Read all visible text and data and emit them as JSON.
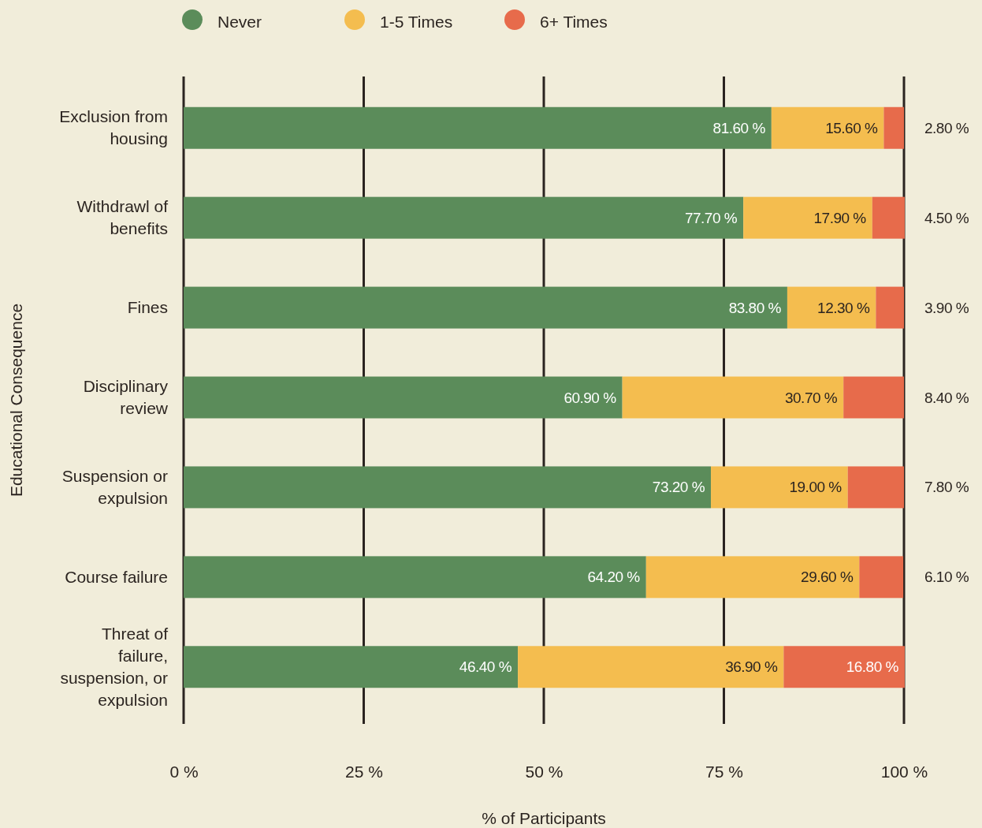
{
  "chart_data": {
    "type": "bar",
    "orientation": "horizontal",
    "stacked": true,
    "xlabel": "% of Participants",
    "ylabel": "Educational Consequence",
    "categories": [
      "Exclusion from housing",
      "Withdrawl of benefits",
      "Fines",
      "Disciplinary review",
      "Suspension or expulsion",
      "Course failure",
      "Threat of failure, suspension, or expulsion"
    ],
    "series": [
      {
        "name": "Never",
        "color": "#5b8c5a",
        "values": [
          81.6,
          77.7,
          83.8,
          60.9,
          73.2,
          64.2,
          46.4
        ],
        "value_labels": [
          "81.60 %",
          "77.70 %",
          "83.80 %",
          "60.90 %",
          "73.20 %",
          "64.20 %",
          "46.40 %"
        ]
      },
      {
        "name": "1-5 Times",
        "color": "#f4bd4f",
        "values": [
          15.6,
          17.9,
          12.3,
          30.7,
          19.0,
          29.6,
          36.9
        ],
        "value_labels": [
          "15.60 %",
          "17.90 %",
          "12.30 %",
          "30.70 %",
          "19.00 %",
          "29.60 %",
          "36.90 %"
        ]
      },
      {
        "name": "6+ Times",
        "color": "#e76b4b",
        "values": [
          2.8,
          4.5,
          3.9,
          8.4,
          7.8,
          6.1,
          16.8
        ],
        "value_labels": [
          "2.80 %",
          "4.50 %",
          "3.90 %",
          "8.40 %",
          "7.80 %",
          "6.10 %",
          "16.80 %"
        ]
      }
    ],
    "xlim": [
      0,
      100
    ],
    "xticks": [
      {
        "value": 0,
        "label": "0 %"
      },
      {
        "value": 25,
        "label": "25 %"
      },
      {
        "value": 50,
        "label": "50 %"
      },
      {
        "value": 75,
        "label": "75 %"
      },
      {
        "value": 100,
        "label": "100 %"
      }
    ],
    "grid": "x",
    "legend": "top"
  }
}
